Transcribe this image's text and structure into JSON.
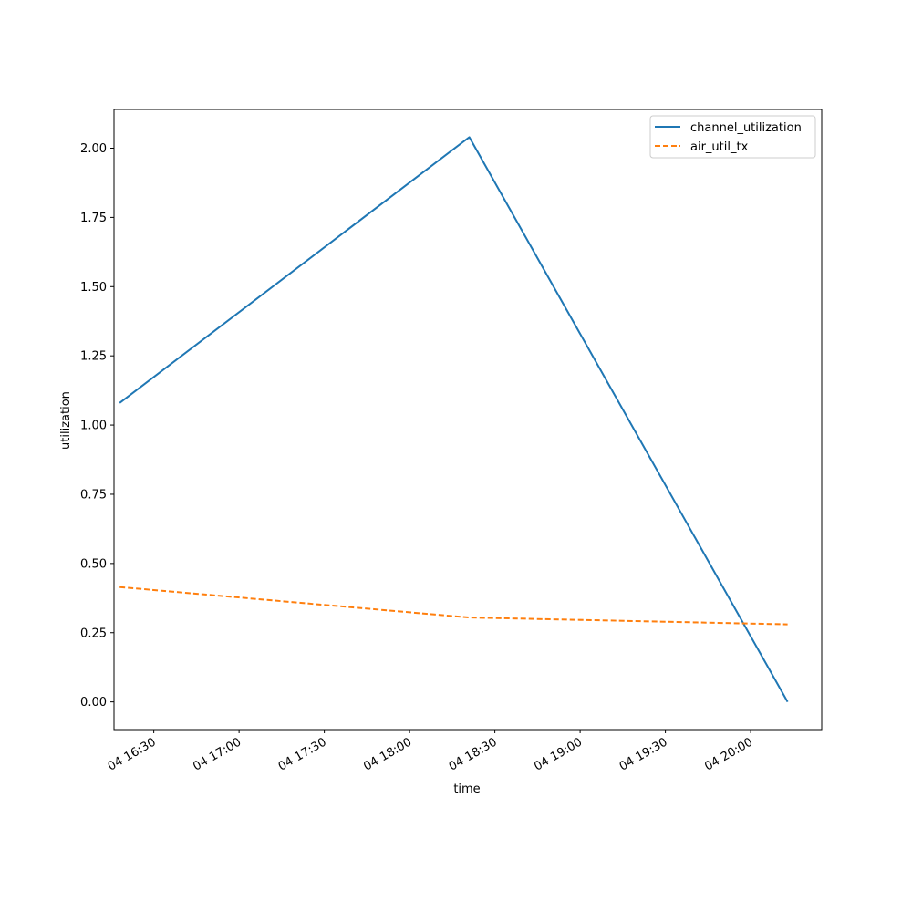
{
  "chart_data": {
    "type": "line",
    "title": "",
    "xlabel": "time",
    "ylabel": "utilization",
    "x_tick_labels": [
      "04 16:30",
      "04 17:00",
      "04 17:30",
      "04 18:00",
      "04 18:30",
      "04 19:00",
      "04 19:30",
      "04 20:00"
    ],
    "y_tick_labels": [
      "0.00",
      "0.25",
      "0.50",
      "0.75",
      "1.00",
      "1.25",
      "1.50",
      "1.75",
      "2.00"
    ],
    "y_ticks": [
      0,
      0.25,
      0.5,
      0.75,
      1.0,
      1.25,
      1.5,
      1.75,
      2.0
    ],
    "ylim": [
      -0.1,
      2.14
    ],
    "xlim": [
      "04 16:16",
      "04 20:25"
    ],
    "x": [
      "04 16:18",
      "04 18:21",
      "04 20:13"
    ],
    "series": [
      {
        "name": "channel_utilization",
        "values": [
          1.08,
          2.04,
          0.0
        ],
        "color": "#1f77b4",
        "style": "solid"
      },
      {
        "name": "air_util_tx",
        "values": [
          0.415,
          0.305,
          0.28
        ],
        "color": "#ff7f0e",
        "style": "dashed"
      }
    ],
    "legend_position": "top-right",
    "grid": false
  }
}
